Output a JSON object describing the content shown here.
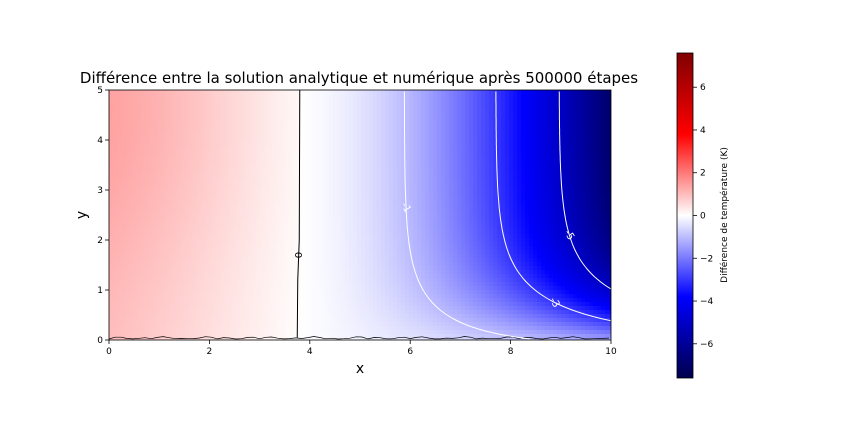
{
  "chart_data": {
    "type": "heatmap",
    "title": "Différence entre la solution analytique et numérique après 500000 étapes",
    "xlabel": "x",
    "ylabel": "y",
    "xlim": [
      0,
      10
    ],
    "ylim": [
      0,
      5
    ],
    "x_ticks": [
      "0",
      "2",
      "4",
      "6",
      "8",
      "10"
    ],
    "y_ticks": [
      "0",
      "1",
      "2",
      "3",
      "4",
      "5"
    ],
    "colormap": "seismic",
    "colorbar": {
      "label": "Différence de température (K)",
      "range": [
        -7.6,
        7.6
      ],
      "ticks": [
        "−6",
        "−4",
        "−2",
        "0",
        "2",
        "4",
        "6"
      ],
      "tick_values": [
        -6,
        -4,
        -2,
        0,
        2,
        4,
        6
      ]
    },
    "contour_lines": [
      {
        "level": 0,
        "label": "0",
        "color": "#000000"
      },
      {
        "level": -1,
        "label": "-1",
        "color": "#ffffff"
      },
      {
        "level": -3,
        "label": "-3",
        "color": "#ffffff"
      },
      {
        "level": -5,
        "label": "-5",
        "color": "#ffffff"
      }
    ],
    "colors": {
      "positive": "#ffc8c8",
      "zero": "#ffffff",
      "negative": "#0000ff",
      "negative_extreme": "#00004d"
    }
  }
}
